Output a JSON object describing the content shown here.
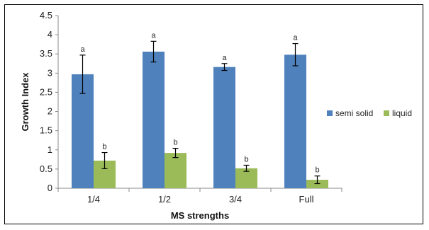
{
  "chart_data": {
    "type": "bar",
    "title": "",
    "xlabel": "MS strengths",
    "ylabel": "Growth Index",
    "categories": [
      "1/4",
      "1/2",
      "3/4",
      "Full"
    ],
    "ylim": [
      0,
      4.5
    ],
    "yticks": [
      "0",
      "0.5",
      "1",
      "1.5",
      "2",
      "2.5",
      "3",
      "3.5",
      "4",
      "4.5"
    ],
    "grid": false,
    "legend_position": "right",
    "series": [
      {
        "name": "semi solid",
        "color": "#4F81BD",
        "values": [
          2.97,
          3.56,
          3.16,
          3.48
        ],
        "errors": [
          0.5,
          0.27,
          0.09,
          0.29
        ],
        "significance": [
          "a",
          "a",
          "a",
          "a"
        ]
      },
      {
        "name": "liquid",
        "color": "#9BBB59",
        "values": [
          0.72,
          0.92,
          0.52,
          0.22
        ],
        "errors": [
          0.21,
          0.12,
          0.08,
          0.1
        ],
        "significance": [
          "b",
          "b",
          "b",
          "b"
        ]
      }
    ]
  }
}
